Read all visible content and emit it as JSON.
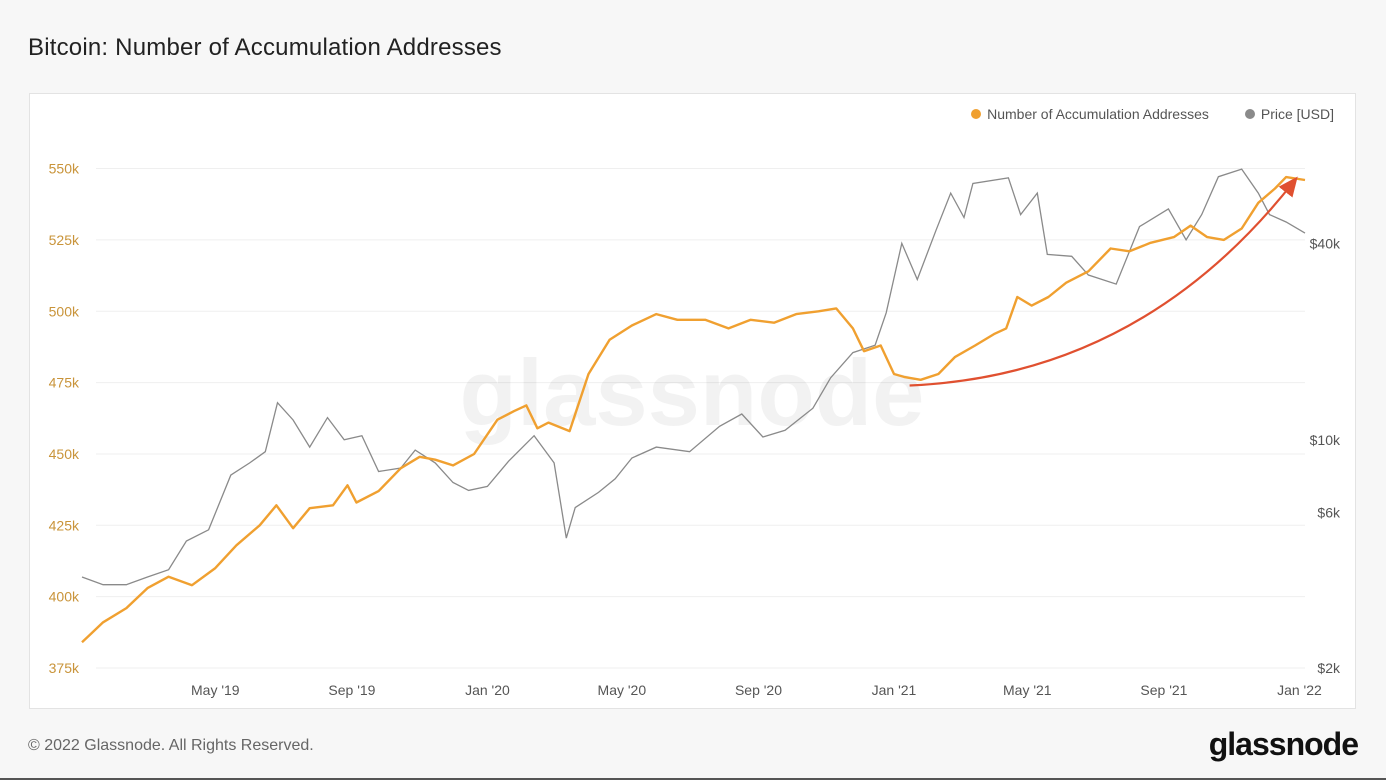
{
  "title": "Bitcoin: Number of Accumulation Addresses",
  "footer": "© 2022 Glassnode. All Rights Reserved.",
  "brand": "glassnode",
  "watermark": "glassnode",
  "colors": {
    "accumulation": "#f0a030",
    "price": "#8a8a8a",
    "arrow": "#e05030",
    "left_axis": "#c9943a"
  },
  "legend": {
    "accumulation_label": "Number of Accumulation Addresses",
    "price_label": "Price [USD]"
  },
  "chart_data": {
    "type": "line",
    "title": "Bitcoin: Number of Accumulation Addresses",
    "x_ticks": [
      "May '19",
      "Sep '19",
      "Jan '20",
      "May '20",
      "Sep '20",
      "Jan '21",
      "May '21",
      "Sep '21",
      "Jan '22"
    ],
    "left_axis": {
      "ticks": [
        "375k",
        "400k",
        "425k",
        "450k",
        "475k",
        "500k",
        "525k",
        "550k"
      ],
      "ylim": [
        375000,
        553000
      ]
    },
    "right_axis": {
      "scale": "log",
      "ticks": [
        "$2k",
        "$6k",
        "$10k",
        "$40k"
      ],
      "ylim": [
        2000,
        72000
      ]
    },
    "grid": true,
    "legend_position": "top-right",
    "x_range": [
      "2019-01-01",
      "2022-01-06"
    ],
    "series": [
      {
        "name": "Number of Accumulation Addresses",
        "axis": "left",
        "points": [
          [
            "2019-01-01",
            384000
          ],
          [
            "2019-01-20",
            391000
          ],
          [
            "2019-02-10",
            396000
          ],
          [
            "2019-03-01",
            403000
          ],
          [
            "2019-03-20",
            407000
          ],
          [
            "2019-04-10",
            404000
          ],
          [
            "2019-05-01",
            410000
          ],
          [
            "2019-05-20",
            418000
          ],
          [
            "2019-06-10",
            425000
          ],
          [
            "2019-06-25",
            432000
          ],
          [
            "2019-07-10",
            424000
          ],
          [
            "2019-07-25",
            431000
          ],
          [
            "2019-08-15",
            432000
          ],
          [
            "2019-08-28",
            439000
          ],
          [
            "2019-09-05",
            433000
          ],
          [
            "2019-09-25",
            437000
          ],
          [
            "2019-10-15",
            445000
          ],
          [
            "2019-11-01",
            449000
          ],
          [
            "2019-11-15",
            448000
          ],
          [
            "2019-12-01",
            446000
          ],
          [
            "2019-12-20",
            450000
          ],
          [
            "2020-01-10",
            462000
          ],
          [
            "2020-01-25",
            465000
          ],
          [
            "2020-02-05",
            467000
          ],
          [
            "2020-02-15",
            459000
          ],
          [
            "2020-02-25",
            461000
          ],
          [
            "2020-03-15",
            458000
          ],
          [
            "2020-04-01",
            478000
          ],
          [
            "2020-04-20",
            490000
          ],
          [
            "2020-05-10",
            495000
          ],
          [
            "2020-06-01",
            499000
          ],
          [
            "2020-06-20",
            497000
          ],
          [
            "2020-07-15",
            497000
          ],
          [
            "2020-08-05",
            494000
          ],
          [
            "2020-08-25",
            497000
          ],
          [
            "2020-09-15",
            496000
          ],
          [
            "2020-10-05",
            499000
          ],
          [
            "2020-10-25",
            500000
          ],
          [
            "2020-11-10",
            501000
          ],
          [
            "2020-11-25",
            494000
          ],
          [
            "2020-12-05",
            486000
          ],
          [
            "2020-12-20",
            488000
          ],
          [
            "2021-01-01",
            478000
          ],
          [
            "2021-01-10",
            477000
          ],
          [
            "2021-01-25",
            476000
          ],
          [
            "2021-02-10",
            478000
          ],
          [
            "2021-02-25",
            484000
          ],
          [
            "2021-03-15",
            488000
          ],
          [
            "2021-04-01",
            492000
          ],
          [
            "2021-04-12",
            494000
          ],
          [
            "2021-04-22",
            505000
          ],
          [
            "2021-05-05",
            502000
          ],
          [
            "2021-05-20",
            505000
          ],
          [
            "2021-06-05",
            510000
          ],
          [
            "2021-06-25",
            514000
          ],
          [
            "2021-07-15",
            522000
          ],
          [
            "2021-08-01",
            521000
          ],
          [
            "2021-08-20",
            524000
          ],
          [
            "2021-09-10",
            526000
          ],
          [
            "2021-09-25",
            530000
          ],
          [
            "2021-10-10",
            526000
          ],
          [
            "2021-10-25",
            525000
          ],
          [
            "2021-11-10",
            529000
          ],
          [
            "2021-11-25",
            538000
          ],
          [
            "2021-12-10",
            543000
          ],
          [
            "2021-12-20",
            547000
          ],
          [
            "2022-01-06",
            546000
          ]
        ]
      },
      {
        "name": "Price [USD]",
        "axis": "right",
        "points": [
          [
            "2019-01-01",
            3800
          ],
          [
            "2019-01-20",
            3600
          ],
          [
            "2019-02-10",
            3600
          ],
          [
            "2019-03-01",
            3800
          ],
          [
            "2019-03-20",
            4000
          ],
          [
            "2019-04-05",
            4900
          ],
          [
            "2019-04-25",
            5300
          ],
          [
            "2019-05-15",
            7800
          ],
          [
            "2019-06-01",
            8500
          ],
          [
            "2019-06-15",
            9200
          ],
          [
            "2019-06-26",
            13000
          ],
          [
            "2019-07-10",
            11500
          ],
          [
            "2019-07-25",
            9500
          ],
          [
            "2019-08-10",
            11700
          ],
          [
            "2019-08-25",
            10000
          ],
          [
            "2019-09-10",
            10300
          ],
          [
            "2019-09-25",
            8000
          ],
          [
            "2019-10-15",
            8200
          ],
          [
            "2019-10-28",
            9300
          ],
          [
            "2019-11-15",
            8500
          ],
          [
            "2019-12-01",
            7400
          ],
          [
            "2019-12-15",
            7000
          ],
          [
            "2020-01-01",
            7200
          ],
          [
            "2020-01-20",
            8600
          ],
          [
            "2020-02-12",
            10300
          ],
          [
            "2020-03-01",
            8500
          ],
          [
            "2020-03-12",
            5000
          ],
          [
            "2020-03-20",
            6200
          ],
          [
            "2020-04-10",
            6900
          ],
          [
            "2020-04-25",
            7600
          ],
          [
            "2020-05-10",
            8800
          ],
          [
            "2020-06-01",
            9500
          ],
          [
            "2020-07-01",
            9200
          ],
          [
            "2020-07-28",
            11000
          ],
          [
            "2020-08-17",
            12000
          ],
          [
            "2020-09-05",
            10200
          ],
          [
            "2020-09-25",
            10700
          ],
          [
            "2020-10-20",
            12500
          ],
          [
            "2020-11-05",
            15500
          ],
          [
            "2020-11-25",
            18500
          ],
          [
            "2020-12-15",
            19500
          ],
          [
            "2020-12-25",
            24500
          ],
          [
            "2021-01-08",
            40000
          ],
          [
            "2021-01-22",
            31000
          ],
          [
            "2021-02-08",
            44000
          ],
          [
            "2021-02-21",
            57000
          ],
          [
            "2021-03-05",
            48000
          ],
          [
            "2021-03-13",
            61000
          ],
          [
            "2021-04-14",
            63500
          ],
          [
            "2021-04-25",
            49000
          ],
          [
            "2021-05-10",
            57000
          ],
          [
            "2021-05-19",
            37000
          ],
          [
            "2021-06-10",
            36500
          ],
          [
            "2021-06-25",
            32000
          ],
          [
            "2021-07-20",
            30000
          ],
          [
            "2021-08-10",
            45000
          ],
          [
            "2021-09-05",
            51000
          ],
          [
            "2021-09-21",
            41000
          ],
          [
            "2021-10-05",
            49000
          ],
          [
            "2021-10-20",
            64000
          ],
          [
            "2021-11-10",
            67500
          ],
          [
            "2021-11-25",
            57000
          ],
          [
            "2021-12-05",
            49000
          ],
          [
            "2021-12-20",
            46500
          ],
          [
            "2022-01-06",
            43000
          ]
        ]
      }
    ],
    "annotations": [
      {
        "type": "arrow",
        "from": [
          "2021-01-15",
          474000
        ],
        "to": [
          "2021-12-28",
          546000
        ]
      }
    ]
  }
}
